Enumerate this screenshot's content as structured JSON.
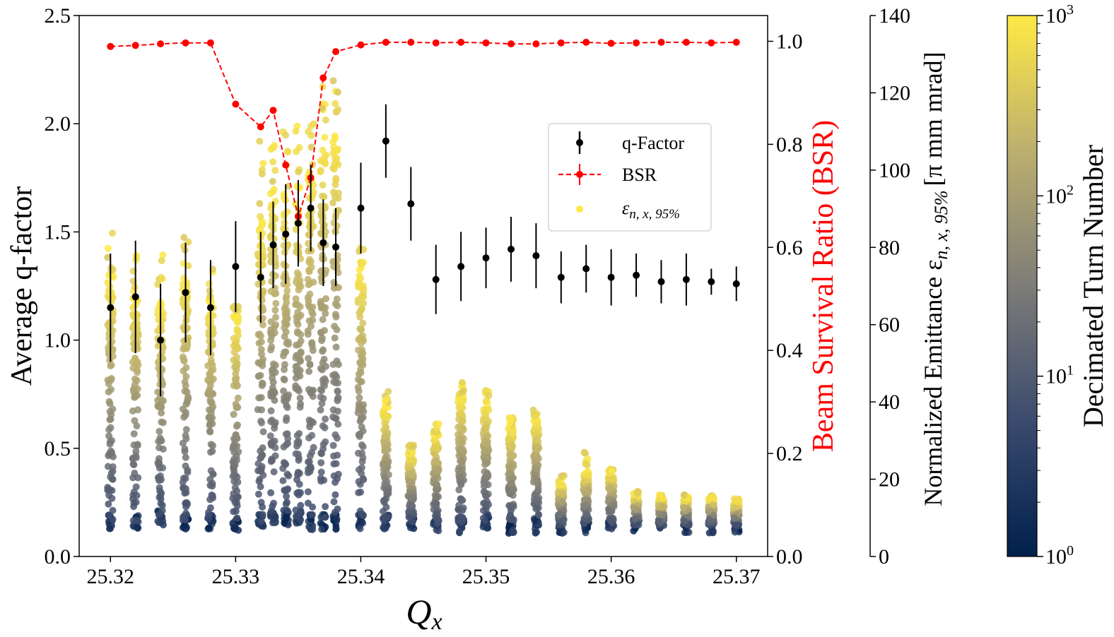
{
  "chart_data": {
    "type": "scatter",
    "title": "",
    "xlabel": "Q",
    "xlabel_sub": "x",
    "ylabel": "Average q-factor",
    "ylabel_right": "Beam Survival Ratio (BSR)",
    "ylabel_right2": "Normalized Emittance ε",
    "ylabel_right2_sub": "n, x, 95%",
    "ylabel_right2_unit": "[π mm mrad]",
    "colorbar_label": "Decimated Turn Number",
    "xlim": [
      25.3175,
      25.3725
    ],
    "ylim": [
      0,
      2.5
    ],
    "ylim_right": [
      0,
      1.05
    ],
    "ylim_right2": [
      0,
      140
    ],
    "colorbar_range": [
      1,
      1000
    ],
    "colorbar_scale": "log",
    "colors": {
      "bsr": "#ff0000",
      "qfactor": "#000000",
      "emittance_marker": "#ffe945",
      "colormap_low": "#00204c",
      "colormap_high": "#ffe945"
    },
    "x_ticks": [
      "25.32",
      "25.33",
      "25.34",
      "25.35",
      "25.36",
      "25.37"
    ],
    "y_ticks": [
      "0.0",
      "0.5",
      "1.0",
      "1.5",
      "2.0",
      "2.5"
    ],
    "y_right_ticks": [
      "0.0",
      "0.2",
      "0.4",
      "0.6",
      "0.8",
      "1.0"
    ],
    "y_right2_ticks": [
      "0",
      "20",
      "40",
      "60",
      "80",
      "100",
      "120",
      "140"
    ],
    "colorbar_ticks": [
      {
        "base": "10",
        "exp": "0"
      },
      {
        "base": "10",
        "exp": "1"
      },
      {
        "base": "10",
        "exp": "2"
      },
      {
        "base": "10",
        "exp": "3"
      }
    ],
    "legend": [
      {
        "label": "q-Factor"
      },
      {
        "label": "BSR"
      },
      {
        "label": "ε",
        "sub": "n, x, 95%"
      }
    ],
    "legend_position": "center-right",
    "series": [
      {
        "name": "q-Factor",
        "x": [
          25.32,
          25.322,
          25.324,
          25.326,
          25.328,
          25.33,
          25.332,
          25.333,
          25.334,
          25.335,
          25.336,
          25.337,
          25.338,
          25.34,
          25.342,
          25.344,
          25.346,
          25.348,
          25.35,
          25.352,
          25.354,
          25.356,
          25.358,
          25.36,
          25.362,
          25.364,
          25.366,
          25.368,
          25.37
        ],
        "y": [
          1.15,
          1.2,
          1.0,
          1.22,
          1.15,
          1.34,
          1.29,
          1.44,
          1.49,
          1.54,
          1.61,
          1.45,
          1.43,
          1.61,
          1.92,
          1.63,
          1.28,
          1.34,
          1.38,
          1.42,
          1.39,
          1.29,
          1.33,
          1.29,
          1.3,
          1.27,
          1.28,
          1.27,
          1.26
        ],
        "yerr": [
          0.25,
          0.26,
          0.26,
          0.23,
          0.22,
          0.21,
          0.21,
          0.2,
          0.23,
          0.2,
          0.2,
          0.2,
          0.18,
          0.21,
          0.17,
          0.17,
          0.16,
          0.16,
          0.14,
          0.15,
          0.15,
          0.12,
          0.11,
          0.13,
          0.1,
          0.1,
          0.12,
          0.06,
          0.08
        ]
      },
      {
        "name": "BSR",
        "x": [
          25.32,
          25.322,
          25.324,
          25.326,
          25.328,
          25.33,
          25.332,
          25.333,
          25.334,
          25.335,
          25.336,
          25.337,
          25.338,
          25.34,
          25.342,
          25.344,
          25.346,
          25.348,
          25.35,
          25.352,
          25.354,
          25.356,
          25.358,
          25.36,
          25.362,
          25.364,
          25.366,
          25.368,
          25.37
        ],
        "y": [
          0.99,
          0.992,
          0.995,
          0.997,
          0.997,
          0.878,
          0.834,
          0.866,
          0.76,
          0.66,
          0.735,
          0.929,
          0.98,
          0.993,
          0.998,
          0.998,
          0.997,
          0.998,
          0.997,
          0.995,
          0.995,
          0.997,
          0.998,
          0.996,
          0.997,
          0.998,
          0.998,
          0.997,
          0.998
        ]
      },
      {
        "name": "ε n,x,95%",
        "x": [
          25.32,
          25.322,
          25.324,
          25.326,
          25.328,
          25.33,
          25.332,
          25.333,
          25.334,
          25.335,
          25.336,
          25.337,
          25.338,
          25.34,
          25.342,
          25.344,
          25.346,
          25.348,
          25.35,
          25.352,
          25.354,
          25.356,
          25.358,
          25.36,
          25.362,
          25.364,
          25.366,
          25.368,
          25.37
        ],
        "core": [
          9,
          9,
          10,
          9,
          9,
          8,
          9,
          10,
          10,
          10,
          9,
          9,
          9,
          9,
          9,
          9,
          8,
          8,
          9,
          8,
          8,
          8,
          8,
          8,
          8,
          8,
          8,
          8,
          8
        ],
        "max": [
          87,
          83,
          80,
          83,
          75,
          65,
          113,
          108,
          110,
          116,
          115,
          122,
          125,
          80,
          44,
          29,
          35,
          48,
          43,
          36,
          38,
          21,
          27,
          23,
          17,
          16,
          16,
          16,
          15
        ],
        "bulk": [
          73,
          69,
          66,
          73,
          67,
          63,
          87,
          96,
          94,
          96,
          101,
          109,
          110,
          75,
          39,
          27,
          32,
          42,
          40,
          34,
          36,
          19,
          22,
          22,
          16,
          15,
          15,
          15,
          14
        ]
      }
    ]
  }
}
